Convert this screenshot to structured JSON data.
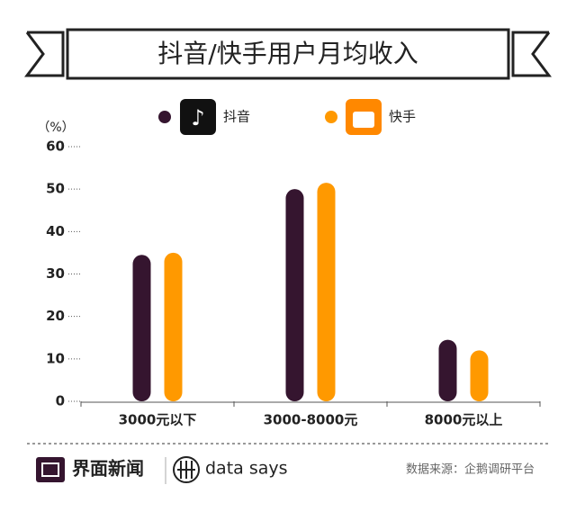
{
  "chart_data": {
    "type": "bar",
    "title": "抖音/快手用户月均收入",
    "y_label": "（%）",
    "categories": [
      "3000元以下",
      "3000-8000元",
      "8000元以上"
    ],
    "series": [
      {
        "name": "抖音",
        "color": "#35152f",
        "values": [
          34.5,
          50,
          14.5
        ]
      },
      {
        "name": "快手",
        "color": "#ff9900",
        "values": [
          35,
          51.5,
          12
        ]
      }
    ],
    "ylim": [
      0,
      60
    ],
    "yticks": [
      0,
      10,
      20,
      30,
      40,
      50,
      60
    ]
  },
  "footer": {
    "brand": "界面新闻",
    "brand2": "data says",
    "source": "数据来源：企鹅调研平台"
  }
}
